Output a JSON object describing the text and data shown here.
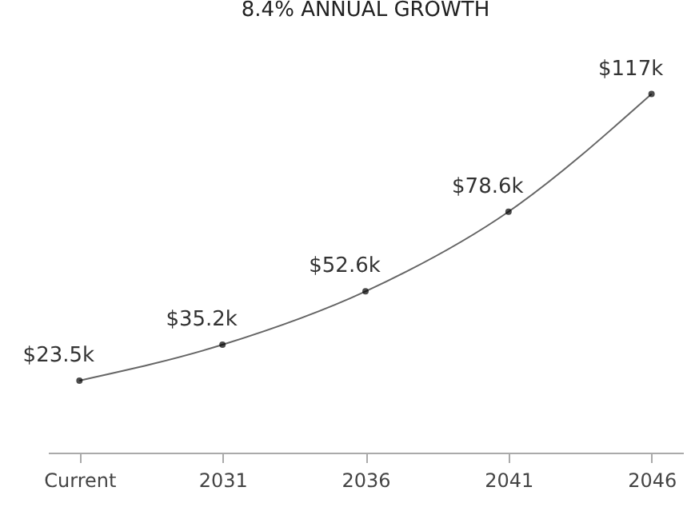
{
  "chart_data": {
    "type": "line",
    "title": "8.4% ANNUAL GROWTH",
    "categories": [
      "Current",
      "2031",
      "2036",
      "2041",
      "2046"
    ],
    "series": [
      {
        "color": "#666666",
        "values": [
          23.5,
          35.2,
          52.6,
          78.6,
          117
        ],
        "value_labels": [
          "$23.5k",
          "$35.2k",
          "$52.6k",
          "$78.6k",
          "$117k"
        ]
      }
    ],
    "marker": "circle",
    "grid": false
  }
}
